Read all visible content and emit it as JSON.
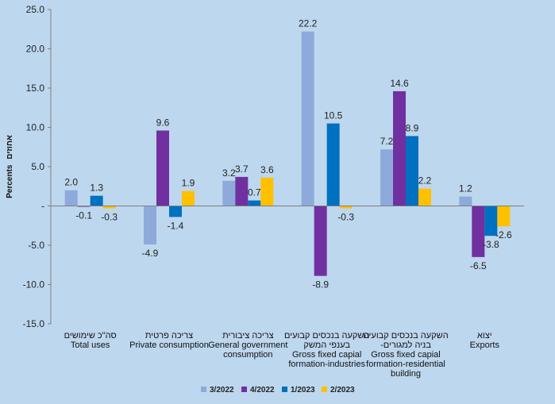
{
  "chart_data": {
    "type": "bar",
    "title": "",
    "ylabel": "Percents אחוזים",
    "ylabel_he": "אחוזים",
    "ylabel_en": "Percents",
    "ylim": [
      -15,
      25
    ],
    "yticks": [
      25,
      20,
      15,
      10,
      5,
      0,
      -5,
      -10,
      -15
    ],
    "ytick_labels": [
      "25.0",
      "20.0",
      "15.0",
      "10.0",
      "5.0",
      "-",
      "-5.0",
      "-10.0",
      "-15.0"
    ],
    "categories": [
      {
        "he": "סה\"כ שימושים",
        "en": [
          "Total uses"
        ]
      },
      {
        "he": "צריכה פרטית",
        "en": [
          "Private consumption"
        ]
      },
      {
        "he": "צריכה ציבורית",
        "en": [
          "General government",
          "consumption"
        ]
      },
      {
        "he": "השקעה בנכסים קבועים",
        "en": [
          "בענפי המשק",
          "Gross fixed capial",
          "formation-industries"
        ]
      },
      {
        "he": "השקעה בנכסים קבועים",
        "en": [
          "-בניה למגורים",
          "Gross fixed capial",
          "formation-residential",
          "building"
        ]
      },
      {
        "he": "יצוא",
        "en": [
          "Exports"
        ]
      }
    ],
    "series": [
      {
        "name": "3/2022",
        "color": "#8eaadb",
        "values": [
          2.0,
          -4.9,
          3.2,
          22.2,
          7.2,
          1.2
        ]
      },
      {
        "name": "4/2022",
        "color": "#7030a0",
        "values": [
          -0.1,
          9.6,
          3.7,
          -8.9,
          14.6,
          -6.5
        ]
      },
      {
        "name": "1/2023",
        "color": "#0070c0",
        "values": [
          1.3,
          -1.4,
          0.7,
          10.5,
          8.9,
          -3.8
        ]
      },
      {
        "name": "2/2023",
        "color": "#ffc000",
        "values": [
          -0.3,
          1.9,
          3.6,
          -0.3,
          2.2,
          -2.6
        ]
      }
    ],
    "data_labels": [
      [
        "2.0",
        "-4.9",
        "3.2",
        "22.2",
        "7.2",
        "1.2"
      ],
      [
        "-0.1",
        "9.6",
        "3.7",
        "-8.9",
        "14.6",
        "-6.5"
      ],
      [
        "1.3",
        "-1.4",
        "0.7",
        "10.5",
        "8.9",
        "-3.8"
      ],
      [
        "-0.3",
        "1.9",
        "3.6",
        "-0.3",
        "2.2",
        "-2.6"
      ]
    ],
    "legend": "bottom",
    "grid": false
  }
}
